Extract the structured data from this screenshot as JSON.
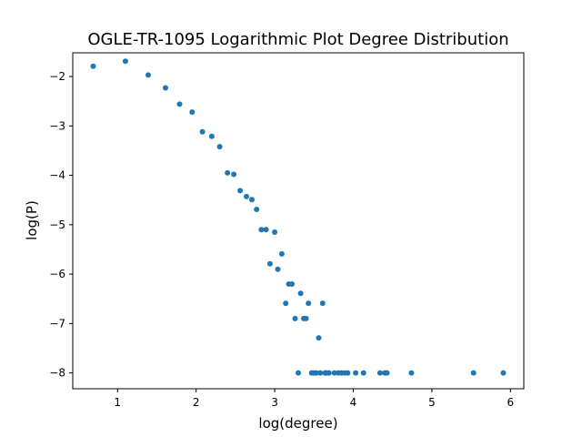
{
  "chart_data": {
    "type": "scatter",
    "title": "OGLE-TR-1095 Logarithmic Plot Degree Distribution",
    "xlabel": "log(degree)",
    "ylabel": "log(P)",
    "xlim": [
      0.43,
      6.17
    ],
    "ylim": [
      -8.32,
      -1.52
    ],
    "xticks": [
      1,
      2,
      3,
      4,
      5,
      6
    ],
    "yticks": [
      -8,
      -7,
      -6,
      -5,
      -4,
      -3,
      -2
    ],
    "grid": false,
    "marker_color": "#1f77b4",
    "series": [
      {
        "points": [
          [
            0.69,
            -1.79
          ],
          [
            1.1,
            -1.69
          ],
          [
            1.39,
            -1.97
          ],
          [
            1.61,
            -2.23
          ],
          [
            1.79,
            -2.56
          ],
          [
            1.95,
            -2.72
          ],
          [
            2.08,
            -3.12
          ],
          [
            2.2,
            -3.21
          ],
          [
            2.3,
            -3.42
          ],
          [
            2.4,
            -3.95
          ],
          [
            2.48,
            -3.98
          ],
          [
            2.56,
            -4.31
          ],
          [
            2.64,
            -4.43
          ],
          [
            2.71,
            -4.49
          ],
          [
            2.77,
            -4.69
          ],
          [
            2.83,
            -5.1
          ],
          [
            2.89,
            -5.1
          ],
          [
            2.94,
            -5.79
          ],
          [
            3.0,
            -5.15
          ],
          [
            3.04,
            -5.9
          ],
          [
            3.09,
            -5.59
          ],
          [
            3.14,
            -6.59
          ],
          [
            3.18,
            -6.2
          ],
          [
            3.22,
            -6.2
          ],
          [
            3.26,
            -6.9
          ],
          [
            3.33,
            -6.39
          ],
          [
            3.37,
            -6.9
          ],
          [
            3.4,
            -6.9
          ],
          [
            3.43,
            -6.59
          ],
          [
            3.56,
            -7.29
          ],
          [
            3.61,
            -6.59
          ],
          [
            3.3,
            -8.0
          ],
          [
            3.47,
            -8.0
          ],
          [
            3.5,
            -8.0
          ],
          [
            3.53,
            -8.0
          ],
          [
            3.58,
            -8.0
          ],
          [
            3.64,
            -8.0
          ],
          [
            3.66,
            -8.0
          ],
          [
            3.69,
            -8.0
          ],
          [
            3.76,
            -8.0
          ],
          [
            3.81,
            -8.0
          ],
          [
            3.85,
            -8.0
          ],
          [
            3.89,
            -8.0
          ],
          [
            3.93,
            -8.0
          ],
          [
            4.03,
            -8.0
          ],
          [
            4.13,
            -8.0
          ],
          [
            4.34,
            -8.0
          ],
          [
            4.4,
            -8.0
          ],
          [
            4.43,
            -8.0
          ],
          [
            4.74,
            -8.0
          ],
          [
            5.53,
            -8.0
          ],
          [
            5.91,
            -8.0
          ]
        ]
      }
    ]
  }
}
